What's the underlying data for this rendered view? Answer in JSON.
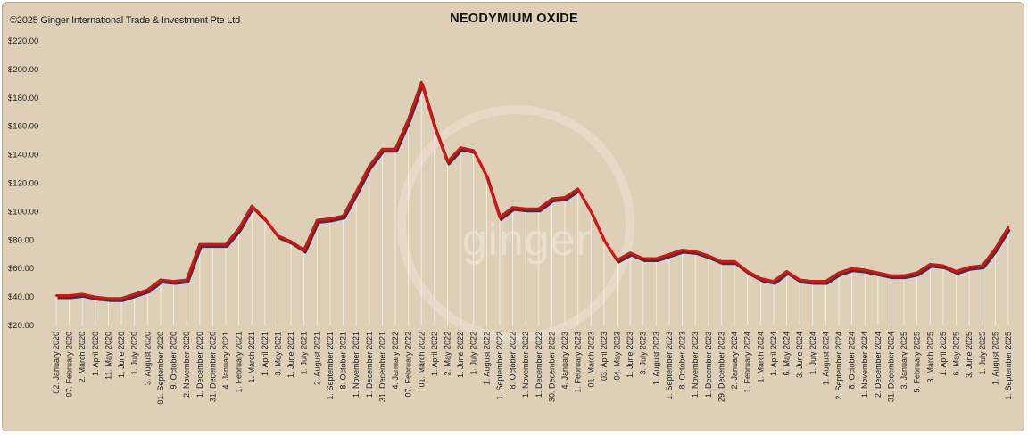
{
  "copyright": "©2025 Ginger International Trade & Investment Pte Ltd",
  "watermark": "ginger",
  "colors": {
    "background": "#ddd0b7",
    "line": "#e01010",
    "shadow": "#3a3550",
    "drop": "#f2ede3"
  },
  "chart_data": {
    "type": "area",
    "title": "NEODYMIUM OXIDE",
    "xlabel": "",
    "ylabel": "",
    "ylim": [
      20,
      220
    ],
    "yticks": [
      "$20.00",
      "$40.00",
      "$60.00",
      "$80.00",
      "$100.00",
      "$120.00",
      "$140.00",
      "$160.00",
      "$180.00",
      "$200.00",
      "$220.00"
    ],
    "categories": [
      "02. January 2020",
      "07. February 2020",
      "2. March 2020",
      "1. April 2020",
      "11. May 2020",
      "1. June 2020",
      "1. July 2020",
      "3. August 2020",
      "01. September 2020",
      "9. October 2020",
      "2. November 2020",
      "1. December 2020",
      "31. December 2020",
      "4. January 2021",
      "1. February 2021",
      "1. March 2021",
      "1. April 2021",
      "3. May 2021",
      "1. June 2021",
      "1. July 2021",
      "2. August 2021",
      "1. September 2021",
      "8. October 2021",
      "1. November 2021",
      "1. December 2021",
      "31. December 2021",
      "4. January 2022",
      "07. February 2022",
      "01. March 2022",
      "1. April 2022",
      "2. May 2022",
      "1. June 2022",
      "1. July 2022",
      "1. August 2022",
      "1. September 2022",
      "8. October 2022",
      "1. November 2022",
      "1. December 2022",
      "30. December 2022",
      "4. January 2023",
      "1. February 2023",
      "01. March 2023",
      "03. April 2023",
      "04. May 2023",
      "1. June 2023",
      "3. July 2023",
      "1. August 2023",
      "1. September 2023",
      "8. October 2023",
      "1. November 2023",
      "1. December 2023",
      "29. December 2023",
      "2. January 2024",
      "1. February 2024",
      "1. March 2024",
      "1. April 2024",
      "6. May 2024",
      "3. June 2024",
      "1. July 2024",
      "1. August 2024",
      "2. September 2024",
      "8. October 2024",
      "1. November 2024",
      "2. December 2024",
      "31. December 2024",
      "3. January 2025",
      "5. February 2025",
      "3. March 2025",
      "1. April 2025",
      "6. May 2025",
      "3. June 2025",
      "1. July 2025",
      "1. August 2025",
      "1. September 2025"
    ],
    "series": [
      {
        "name": "Neodymium Oxide",
        "values": [
          41,
          41,
          42,
          40,
          39,
          39,
          42,
          45,
          52,
          51,
          52,
          77,
          77,
          77,
          88,
          104,
          95,
          83,
          79,
          73,
          94,
          95,
          97,
          114,
          132,
          144,
          144,
          165,
          191,
          160,
          135,
          145,
          143,
          125,
          96,
          103,
          102,
          102,
          109,
          110,
          116,
          100,
          80,
          66,
          71,
          67,
          67,
          70,
          73,
          72,
          69,
          65,
          65,
          58,
          53,
          51,
          58,
          52,
          51,
          51,
          57,
          60,
          59,
          57,
          55,
          55,
          57,
          63,
          62,
          58,
          61,
          62,
          74,
          89
        ]
      }
    ]
  }
}
